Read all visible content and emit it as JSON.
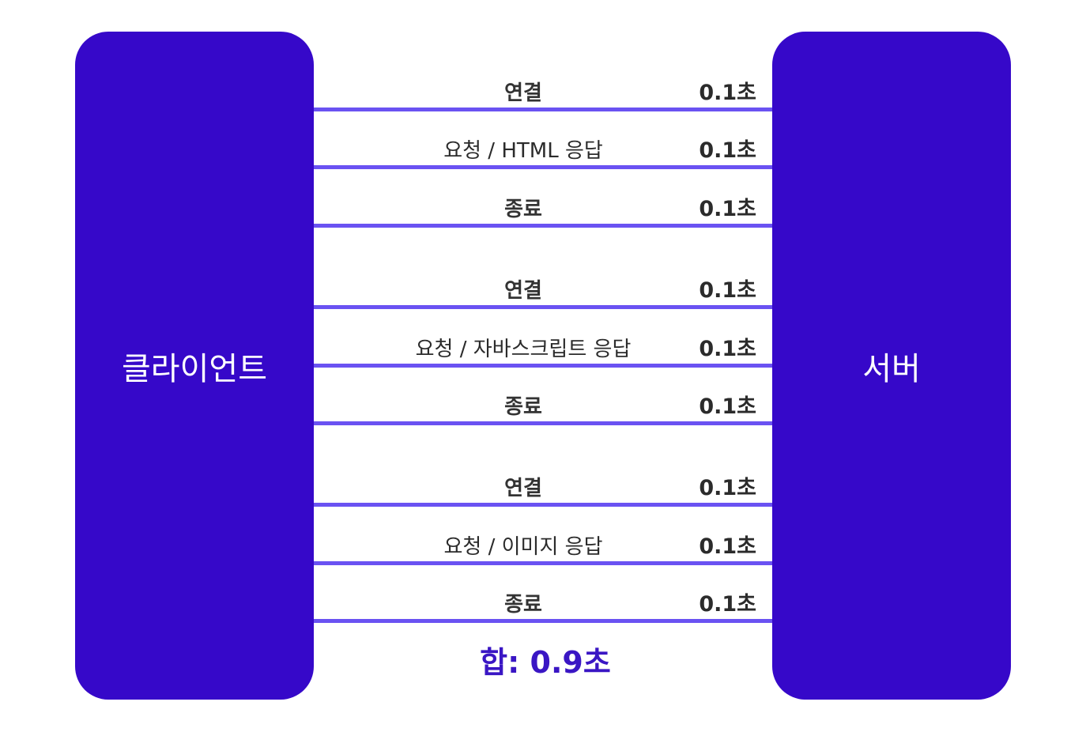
{
  "colors": {
    "node_fill": "#3608c9",
    "line": "#6a52f2",
    "total_text": "#3a16c4"
  },
  "client": {
    "label": "클라이언트"
  },
  "server": {
    "label": "서버"
  },
  "steps": [
    {
      "label": "연결",
      "time": "0.1초"
    },
    {
      "label": "요청 / HTML 응답",
      "time": "0.1초"
    },
    {
      "label": "종료",
      "time": "0.1초"
    },
    {
      "label": "연결",
      "time": "0.1초"
    },
    {
      "label": "요청 / 자바스크립트 응답",
      "time": "0.1초"
    },
    {
      "label": "종료",
      "time": "0.1초"
    },
    {
      "label": "연결",
      "time": "0.1초"
    },
    {
      "label": "요청 / 이미지 응답",
      "time": "0.1초"
    },
    {
      "label": "종료",
      "time": "0.1초"
    }
  ],
  "total": {
    "label": "합: 0.9초"
  }
}
